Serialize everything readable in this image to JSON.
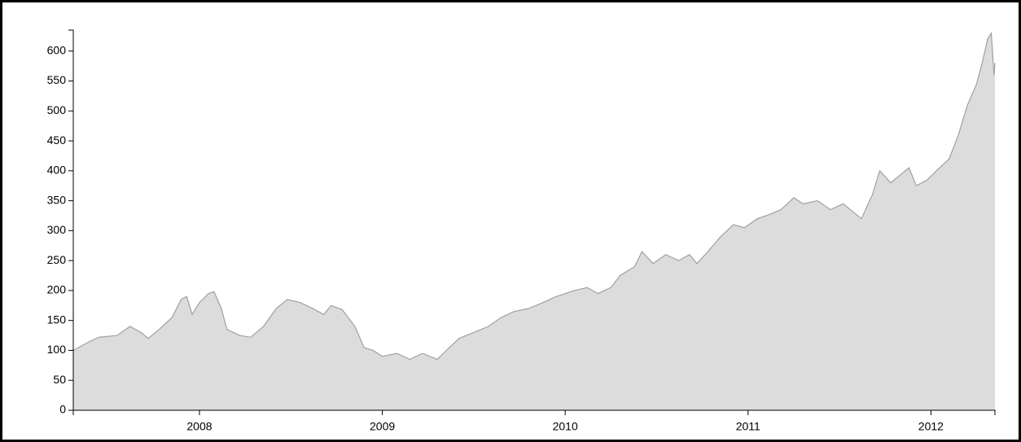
{
  "chart_data": {
    "type": "area",
    "x": [
      2007.31,
      2007.4,
      2007.45,
      2007.55,
      2007.62,
      2007.68,
      2007.72,
      2007.78,
      2007.85,
      2007.9,
      2007.93,
      2007.96,
      2008.0,
      2008.05,
      2008.08,
      2008.12,
      2008.15,
      2008.22,
      2008.28,
      2008.35,
      2008.42,
      2008.48,
      2008.55,
      2008.62,
      2008.68,
      2008.72,
      2008.78,
      2008.85,
      2008.9,
      2008.95,
      2009.0,
      2009.08,
      2009.15,
      2009.22,
      2009.3,
      2009.35,
      2009.42,
      2009.5,
      2009.58,
      2009.65,
      2009.72,
      2009.8,
      2009.88,
      2009.95,
      2010.05,
      2010.12,
      2010.18,
      2010.25,
      2010.3,
      2010.38,
      2010.42,
      2010.48,
      2010.55,
      2010.62,
      2010.68,
      2010.72,
      2010.78,
      2010.85,
      2010.92,
      2010.98,
      2011.05,
      2011.1,
      2011.18,
      2011.25,
      2011.3,
      2011.38,
      2011.45,
      2011.52,
      2011.58,
      2011.62,
      2011.68,
      2011.72,
      2011.78,
      2011.82,
      2011.88,
      2011.92,
      2011.98,
      2012.03,
      2012.1,
      2012.15,
      2012.2,
      2012.25,
      2012.28,
      2012.31,
      2012.33,
      2012.345,
      2012.35
    ],
    "series": [
      {
        "color": "#dcdcdc",
        "stroke": "#a0a0a0",
        "values": [
          100,
          115,
          122,
          125,
          140,
          130,
          120,
          135,
          155,
          185,
          190,
          160,
          180,
          195,
          198,
          170,
          135,
          125,
          122,
          140,
          170,
          185,
          180,
          170,
          160,
          175,
          168,
          140,
          105,
          100,
          90,
          95,
          85,
          95,
          85,
          100,
          120,
          130,
          140,
          155,
          165,
          170,
          180,
          190,
          200,
          205,
          195,
          205,
          225,
          240,
          265,
          245,
          260,
          250,
          260,
          245,
          265,
          290,
          310,
          305,
          320,
          325,
          335,
          355,
          345,
          350,
          335,
          345,
          330,
          320,
          360,
          400,
          380,
          390,
          405,
          375,
          385,
          400,
          420,
          460,
          510,
          545,
          580,
          620,
          630,
          560,
          580
        ]
      }
    ],
    "xlim": [
      2007.31,
      2012.35
    ],
    "xticks": [
      2008,
      2009,
      2010,
      2011,
      2012
    ],
    "ylim": [
      0,
      635
    ],
    "yticks": [
      0,
      50,
      100,
      150,
      200,
      250,
      300,
      350,
      400,
      450,
      500,
      550,
      600
    ]
  }
}
